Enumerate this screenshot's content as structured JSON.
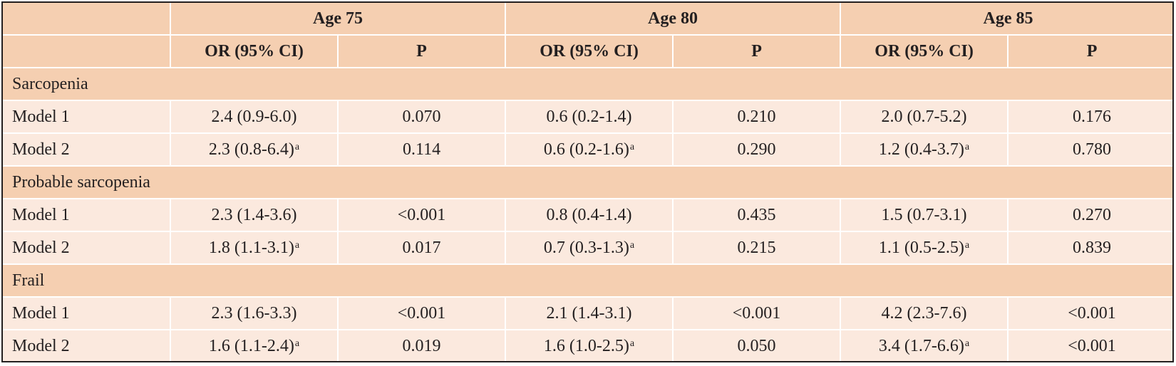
{
  "header": {
    "groups": [
      "Age 75",
      "Age 80",
      "Age 85"
    ],
    "or_label": "OR (95% CI)",
    "p_label": "P"
  },
  "sections": [
    {
      "title": "Sarcopenia",
      "rows": [
        {
          "model": "Model 1",
          "cells": [
            {
              "or": "2.4 (0.9-6.0)",
              "sup": "",
              "p": "0.070"
            },
            {
              "or": "0.6 (0.2-1.4)",
              "sup": "",
              "p": "0.210"
            },
            {
              "or": "2.0 (0.7-5.2)",
              "sup": "",
              "p": "0.176"
            }
          ]
        },
        {
          "model": "Model 2",
          "cells": [
            {
              "or": "2.3 (0.8-6.4)",
              "sup": "a",
              "p": "0.114"
            },
            {
              "or": "0.6 (0.2-1.6)",
              "sup": "a",
              "p": "0.290"
            },
            {
              "or": "1.2 (0.4-3.7)",
              "sup": "a",
              "p": "0.780"
            }
          ]
        }
      ]
    },
    {
      "title": "Probable sarcopenia",
      "rows": [
        {
          "model": "Model 1",
          "cells": [
            {
              "or": "2.3 (1.4-3.6)",
              "sup": "",
              "p": "<0.001"
            },
            {
              "or": "0.8 (0.4-1.4)",
              "sup": "",
              "p": "0.435"
            },
            {
              "or": "1.5 (0.7-3.1)",
              "sup": "",
              "p": "0.270"
            }
          ]
        },
        {
          "model": "Model 2",
          "cells": [
            {
              "or": "1.8 (1.1-3.1)",
              "sup": "a",
              "p": "0.017"
            },
            {
              "or": "0.7 (0.3-1.3)",
              "sup": "a",
              "p": "0.215"
            },
            {
              "or": "1.1 (0.5-2.5)",
              "sup": "a",
              "p": "0.839"
            }
          ]
        }
      ]
    },
    {
      "title": "Frail",
      "rows": [
        {
          "model": "Model 1",
          "cells": [
            {
              "or": "2.3 (1.6-3.3)",
              "sup": "",
              "p": "<0.001"
            },
            {
              "or": "2.1 (1.4-3.1)",
              "sup": "",
              "p": "<0.001"
            },
            {
              "or": "4.2 (2.3-7.6)",
              "sup": "",
              "p": "<0.001"
            }
          ]
        },
        {
          "model": "Model 2",
          "cells": [
            {
              "or": "1.6 (1.1-2.4)",
              "sup": "a",
              "p": "0.019"
            },
            {
              "or": "1.6 (1.0-2.5)",
              "sup": "a",
              "p": "0.050"
            },
            {
              "or": "3.4 (1.7-6.6)",
              "sup": "a",
              "p": "<0.001"
            }
          ]
        }
      ]
    }
  ],
  "colors": {
    "header_bg": "#f5cfb1",
    "row_bg": "#fbe9de",
    "border": "#231f20"
  }
}
